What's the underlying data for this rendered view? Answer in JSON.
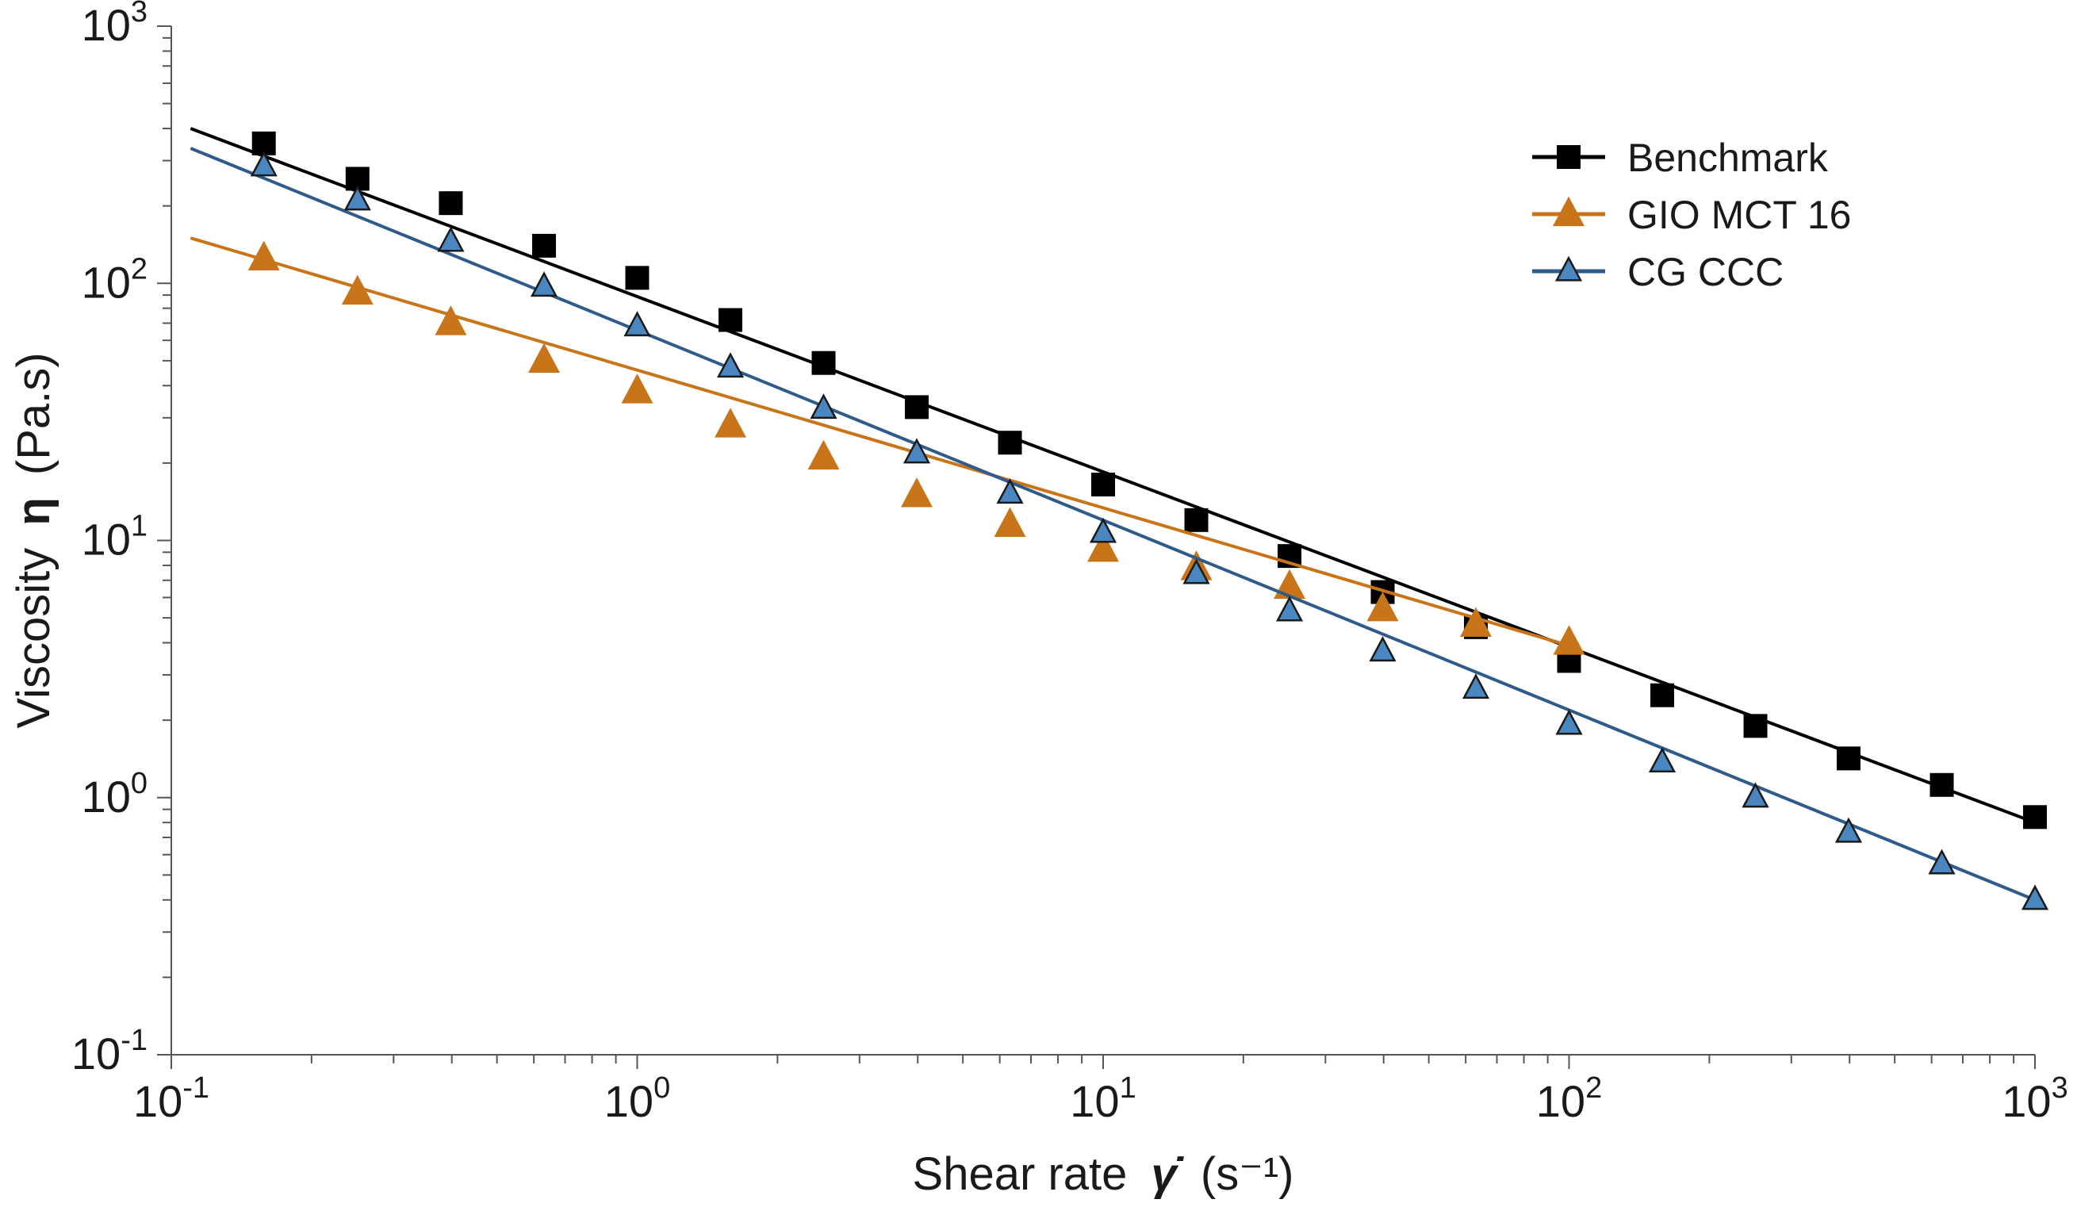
{
  "chart_data": {
    "type": "line",
    "xlabel": "Shear rate",
    "xlabel_symbol": "γ̇",
    "xlabel_unit": "(s⁻¹)",
    "ylabel": "Viscosity",
    "ylabel_symbol": "η",
    "ylabel_unit": "(Pa.s)",
    "xscale": "log",
    "yscale": "log",
    "xlim": [
      0.1,
      1000
    ],
    "ylim": [
      0.1,
      1000
    ],
    "x_ticks": [
      {
        "value": 0.1,
        "base": "10",
        "exp": "-1"
      },
      {
        "value": 1,
        "base": "10",
        "exp": "0"
      },
      {
        "value": 10,
        "base": "10",
        "exp": "1"
      },
      {
        "value": 100,
        "base": "10",
        "exp": "2"
      },
      {
        "value": 1000,
        "base": "10",
        "exp": "3"
      }
    ],
    "y_ticks": [
      {
        "value": 0.1,
        "base": "10",
        "exp": "-1"
      },
      {
        "value": 1,
        "base": "10",
        "exp": "0"
      },
      {
        "value": 10,
        "base": "10",
        "exp": "1"
      },
      {
        "value": 100,
        "base": "10",
        "exp": "2"
      },
      {
        "value": 1000,
        "base": "10",
        "exp": "3"
      }
    ],
    "grid": false,
    "legend_position": "top-right",
    "series": [
      {
        "name": "Benchmark",
        "color": "#000000",
        "marker": "square",
        "fit_line": {
          "x": [
            0.11,
            1000
          ],
          "y": [
            400,
            0.8
          ]
        },
        "x": [
          0.158,
          0.251,
          0.398,
          0.631,
          1.0,
          1.585,
          2.512,
          3.981,
          6.31,
          10.0,
          15.85,
          25.12,
          39.81,
          63.1,
          100.0,
          158.5,
          251.2,
          398.1,
          631.0,
          1000.0
        ],
        "y": [
          350,
          255,
          205,
          140,
          105,
          72,
          49,
          33,
          24,
          16.5,
          12,
          8.7,
          6.3,
          4.6,
          3.4,
          2.5,
          1.9,
          1.42,
          1.12,
          0.84
        ]
      },
      {
        "name": "GIO MCT 16",
        "color": "#c8751a",
        "marker": "triangle",
        "fit_line": {
          "x": [
            0.11,
            100
          ],
          "y": [
            150,
            3.9
          ]
        },
        "x": [
          0.158,
          0.251,
          0.398,
          0.631,
          1.0,
          1.585,
          2.512,
          3.981,
          6.31,
          10.0,
          15.85,
          25.12,
          39.81,
          63.1,
          100.0
        ],
        "y": [
          125,
          92,
          70,
          50,
          38,
          28,
          21,
          15,
          11.5,
          9.2,
          7.8,
          6.6,
          5.4,
          4.7,
          4.0
        ]
      },
      {
        "name": "CG CCC",
        "color": "#2f5b8a",
        "marker_fill": "#4a86c0",
        "marker": "triangle",
        "fit_line": {
          "x": [
            0.11,
            1000
          ],
          "y": [
            335,
            0.4
          ]
        },
        "x": [
          0.158,
          0.251,
          0.398,
          0.631,
          1.0,
          1.585,
          2.512,
          3.981,
          6.31,
          10.0,
          15.85,
          25.12,
          39.81,
          63.1,
          100.0,
          158.5,
          251.2,
          398.1,
          631.0,
          1000.0
        ],
        "y": [
          285,
          210,
          145,
          97,
          68,
          47,
          32.5,
          21.8,
          15.2,
          10.7,
          7.4,
          5.3,
          3.7,
          2.65,
          1.92,
          1.37,
          1.0,
          0.73,
          0.55,
          0.4
        ]
      }
    ]
  }
}
